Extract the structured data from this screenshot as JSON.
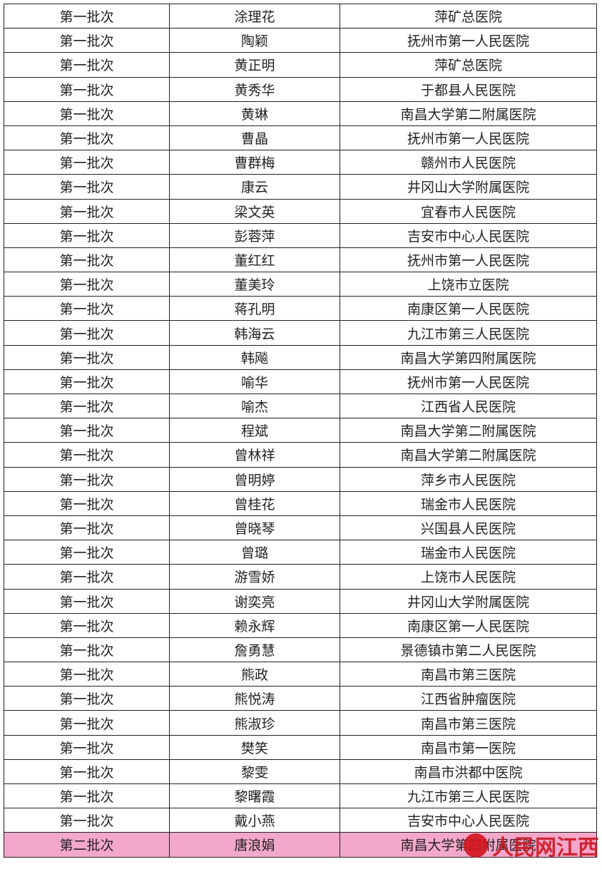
{
  "table": {
    "rows": [
      [
        "第一批次",
        "涂理花",
        "萍矿总医院"
      ],
      [
        "第一批次",
        "陶颖",
        "抚州市第一人民医院"
      ],
      [
        "第一批次",
        "黄正明",
        "萍矿总医院"
      ],
      [
        "第一批次",
        "黄秀华",
        "于都县人民医院"
      ],
      [
        "第一批次",
        "黄琳",
        "南昌大学第二附属医院"
      ],
      [
        "第一批次",
        "曹晶",
        "抚州市第一人民医院"
      ],
      [
        "第一批次",
        "曹群梅",
        "赣州市人民医院"
      ],
      [
        "第一批次",
        "康云",
        "井冈山大学附属医院"
      ],
      [
        "第一批次",
        "梁文英",
        "宜春市人民医院"
      ],
      [
        "第一批次",
        "彭蓉萍",
        "吉安市中心人民医院"
      ],
      [
        "第一批次",
        "董红红",
        "抚州市第一人民医院"
      ],
      [
        "第一批次",
        "董美玲",
        "上饶市立医院"
      ],
      [
        "第一批次",
        "蒋孔明",
        "南康区第一人民医院"
      ],
      [
        "第一批次",
        "韩海云",
        "九江市第三人民医院"
      ],
      [
        "第一批次",
        "韩飚",
        "南昌大学第四附属医院"
      ],
      [
        "第一批次",
        "喻华",
        "抚州市第一人民医院"
      ],
      [
        "第一批次",
        "喻杰",
        "江西省人民医院"
      ],
      [
        "第一批次",
        "程斌",
        "南昌大学第二附属医院"
      ],
      [
        "第一批次",
        "曾林祥",
        "南昌大学第二附属医院"
      ],
      [
        "第一批次",
        "曾明婷",
        "萍乡市人民医院"
      ],
      [
        "第一批次",
        "曾桂花",
        "瑞金市人民医院"
      ],
      [
        "第一批次",
        "曾晓琴",
        "兴国县人民医院"
      ],
      [
        "第一批次",
        "曾璐",
        "瑞金市人民医院"
      ],
      [
        "第一批次",
        "游雪娇",
        "上饶市人民医院"
      ],
      [
        "第一批次",
        "谢奕亮",
        "井冈山大学附属医院"
      ],
      [
        "第一批次",
        "赖永辉",
        "南康区第一人民医院"
      ],
      [
        "第一批次",
        "詹勇慧",
        "景德镇市第二人民医院"
      ],
      [
        "第一批次",
        "熊政",
        "南昌市第三医院"
      ],
      [
        "第一批次",
        "熊悦涛",
        "江西省肿瘤医院"
      ],
      [
        "第一批次",
        "熊淑珍",
        "南昌市第三医院"
      ],
      [
        "第一批次",
        "樊笑",
        "南昌市第一医院"
      ],
      [
        "第一批次",
        "黎雯",
        "南昌市洪都中医院"
      ],
      [
        "第一批次",
        "黎曙霞",
        "九江市第三人民医院"
      ],
      [
        "第一批次",
        "戴小燕",
        "吉安市中心人民医院"
      ],
      [
        "第二批次",
        "唐浪娟",
        "南昌大学第四附属医院"
      ]
    ]
  },
  "watermark": "人民网江西"
}
